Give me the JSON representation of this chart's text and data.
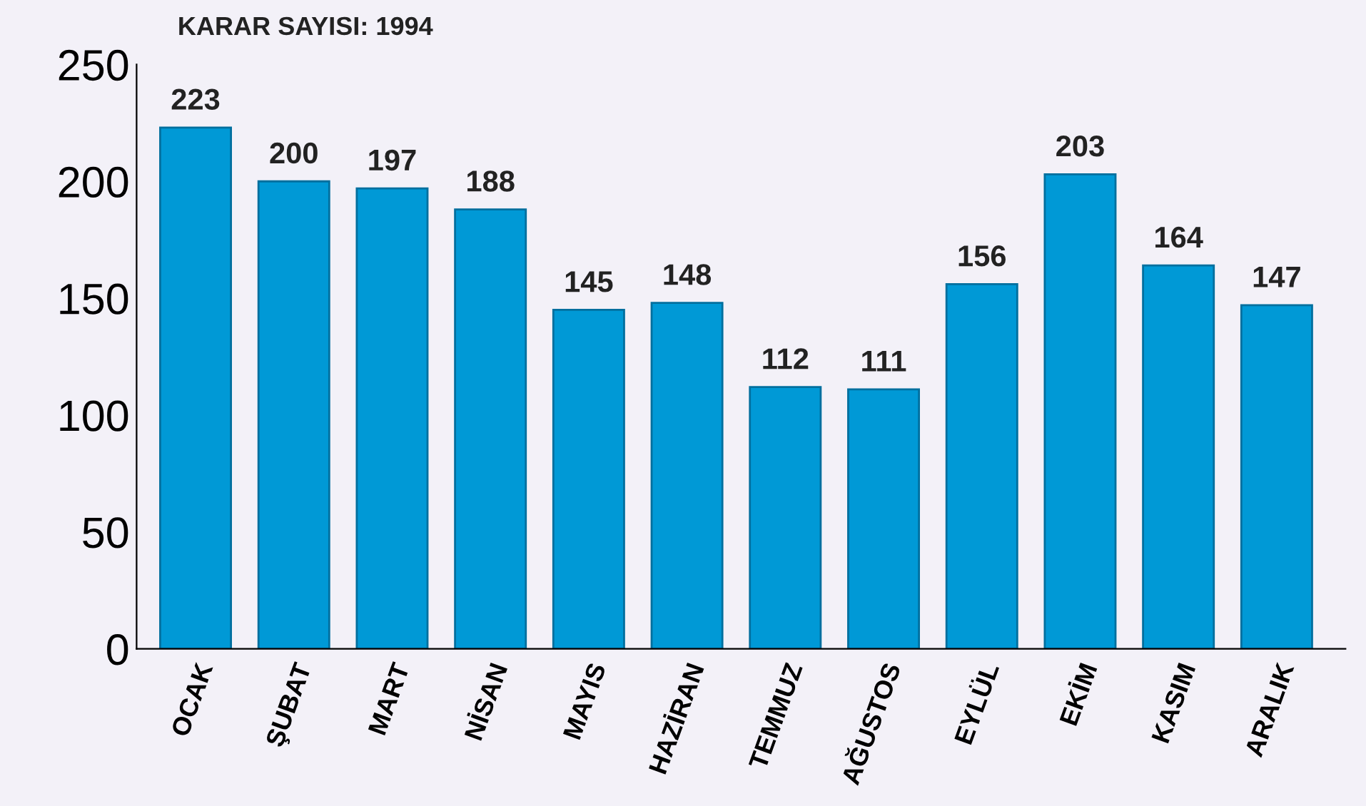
{
  "chart_data": {
    "type": "bar",
    "title": "KARAR SAYISI: 1994",
    "categories": [
      "OCAK",
      "ŞUBAT",
      "MART",
      "NİSAN",
      "MAYIS",
      "HAZİRAN",
      "TEMMUZ",
      "AĞUSTOS",
      "EYLÜL",
      "EKİM",
      "KASIM",
      "ARALIK"
    ],
    "values": [
      223,
      200,
      197,
      188,
      145,
      148,
      112,
      111,
      156,
      203,
      164,
      147
    ],
    "color": "#0099d6",
    "ylim": [
      0,
      250
    ],
    "yticks": [
      0,
      50,
      100,
      150,
      200,
      250
    ],
    "grid": false,
    "data_labels": true
  }
}
